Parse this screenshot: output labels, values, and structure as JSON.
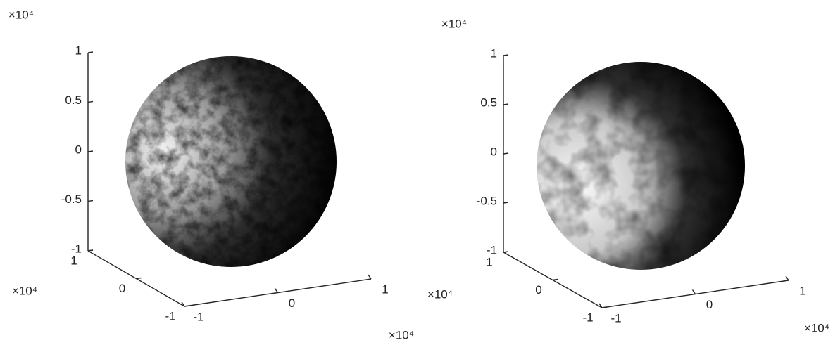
{
  "chart_data": [
    {
      "type": "surface",
      "xlim": [
        -1,
        1
      ],
      "xticks": [
        -1,
        0,
        1
      ],
      "ylim": [
        -1,
        1
      ],
      "yticks": [
        -1,
        0,
        1
      ],
      "zlim": [
        -1,
        1
      ],
      "zticks": [
        -1,
        -0.5,
        0,
        0.5,
        1
      ],
      "x_exponent": "×10⁴",
      "y_exponent": "×10⁴",
      "z_exponent": "×10⁴"
    },
    {
      "type": "surface",
      "xlim": [
        -1,
        1
      ],
      "xticks": [
        -1,
        0,
        1
      ],
      "ylim": [
        -1,
        1
      ],
      "yticks": [
        -1,
        0,
        1
      ],
      "zlim": [
        -1,
        1
      ],
      "zticks": [
        -1,
        -0.5,
        0,
        0.5,
        1
      ],
      "x_exponent": "×10⁴",
      "y_exponent": "×10⁴",
      "z_exponent": "×10⁴"
    }
  ]
}
